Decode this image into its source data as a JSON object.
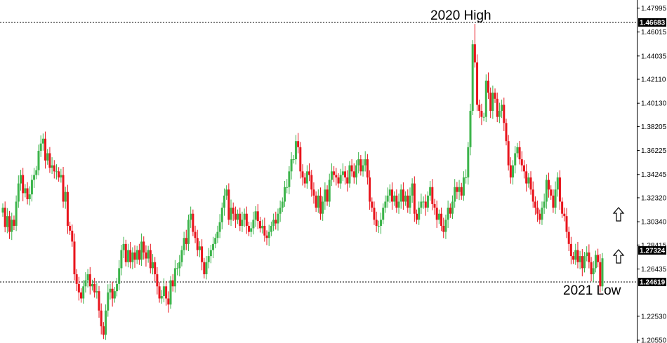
{
  "chart_data": {
    "type": "candlestick",
    "ylim": [
      1.2032,
      1.4866
    ],
    "y_ticks": [
      "1.47995",
      "1.46015",
      "1.44035",
      "1.42110",
      "1.40130",
      "1.38205",
      "1.36225",
      "1.34245",
      "1.32320",
      "1.30340",
      "1.28415",
      "1.26435",
      "1.22530",
      "1.20550"
    ],
    "price_badges": [
      {
        "label": "1.46683",
        "value": 1.46683
      },
      {
        "label": "1.27324",
        "value": 1.27324
      },
      {
        "label": "1.24619",
        "value": 1.24619
      }
    ],
    "reference_lines": [
      {
        "value": 1.46683,
        "style": "dashed"
      },
      {
        "value": 1.24619,
        "style": "dashed"
      }
    ],
    "annotations": [
      {
        "text": "2020 High",
        "value": 1.46683
      },
      {
        "text": "2021 Low",
        "value": 1.24619
      }
    ],
    "markers": [
      {
        "name": "up-arrow",
        "value": 1.302
      },
      {
        "name": "up-arrow",
        "value": 1.267
      }
    ],
    "colors": {
      "up": "#3cb44b",
      "down": "#e8141c",
      "wick": "#555555",
      "badge": "#000000"
    },
    "closes": [
      1.315,
      1.299,
      1.308,
      1.295,
      1.305,
      1.3,
      1.32,
      1.335,
      1.342,
      1.327,
      1.331,
      1.322,
      1.326,
      1.338,
      1.342,
      1.346,
      1.362,
      1.368,
      1.372,
      1.354,
      1.36,
      1.348,
      1.35,
      1.345,
      1.345,
      1.34,
      1.342,
      1.32,
      1.328,
      1.3,
      1.296,
      1.287,
      1.26,
      1.252,
      1.245,
      1.24,
      1.25,
      1.255,
      1.26,
      1.25,
      1.252,
      1.245,
      1.246,
      1.23,
      1.217,
      1.21,
      1.23,
      1.245,
      1.248,
      1.24,
      1.246,
      1.252,
      1.265,
      1.28,
      1.285,
      1.27,
      1.28,
      1.27,
      1.278,
      1.272,
      1.28,
      1.272,
      1.287,
      1.278,
      1.273,
      1.28,
      1.265,
      1.27,
      1.26,
      1.25,
      1.24,
      1.242,
      1.25,
      1.24,
      1.235,
      1.255,
      1.25,
      1.265,
      1.265,
      1.27,
      1.28,
      1.29,
      1.285,
      1.305,
      1.31,
      1.295,
      1.29,
      1.28,
      1.283,
      1.27,
      1.26,
      1.27,
      1.275,
      1.28,
      1.285,
      1.29,
      1.295,
      1.303,
      1.315,
      1.325,
      1.33,
      1.305,
      1.315,
      1.31,
      1.305,
      1.31,
      1.3,
      1.305,
      1.31,
      1.3,
      1.295,
      1.298,
      1.305,
      1.312,
      1.304,
      1.298,
      1.3,
      1.292,
      1.29,
      1.295,
      1.3,
      1.305,
      1.302,
      1.31,
      1.315,
      1.32,
      1.332,
      1.332,
      1.345,
      1.355,
      1.355,
      1.37,
      1.365,
      1.345,
      1.34,
      1.335,
      1.345,
      1.342,
      1.33,
      1.325,
      1.315,
      1.325,
      1.31,
      1.32,
      1.33,
      1.32,
      1.338,
      1.345,
      1.342,
      1.34,
      1.335,
      1.342,
      1.345,
      1.34,
      1.335,
      1.35,
      1.345,
      1.34,
      1.35,
      1.355,
      1.345,
      1.35,
      1.355,
      1.34,
      1.32,
      1.315,
      1.305,
      1.3,
      1.3,
      1.305,
      1.315,
      1.32,
      1.325,
      1.33,
      1.32,
      1.325,
      1.315,
      1.32,
      1.33,
      1.32,
      1.325,
      1.315,
      1.325,
      1.335,
      1.31,
      1.305,
      1.315,
      1.32,
      1.32,
      1.315,
      1.325,
      1.332,
      1.318,
      1.315,
      1.305,
      1.31,
      1.3,
      1.295,
      1.305,
      1.315,
      1.31,
      1.32,
      1.332,
      1.328,
      1.332,
      1.325,
      1.34,
      1.34,
      1.365,
      1.395,
      1.45,
      1.435,
      1.4,
      1.395,
      1.39,
      1.39,
      1.42,
      1.41,
      1.395,
      1.41,
      1.405,
      1.39,
      1.395,
      1.4,
      1.385,
      1.37,
      1.35,
      1.34,
      1.35,
      1.36,
      1.365,
      1.355,
      1.35,
      1.345,
      1.335,
      1.34,
      1.33,
      1.32,
      1.315,
      1.31,
      1.305,
      1.315,
      1.32,
      1.338,
      1.33,
      1.325,
      1.315,
      1.33,
      1.34,
      1.32,
      1.31,
      1.308,
      1.295,
      1.285,
      1.275,
      1.272,
      1.28,
      1.27,
      1.275,
      1.265,
      1.275,
      1.278,
      1.27,
      1.26,
      1.265,
      1.276,
      1.27,
      1.25,
      1.2732
    ]
  },
  "y_axis": {
    "tick_labels": [
      "1.47995",
      "1.46015",
      "1.44035",
      "1.42110",
      "1.40130",
      "1.38205",
      "1.36225",
      "1.34245",
      "1.32320",
      "1.30340",
      "1.28415",
      "1.26435",
      "1.22530",
      "1.20550"
    ],
    "badges": [
      "1.46683",
      "1.27324",
      "1.24619"
    ]
  },
  "annotations": {
    "high": "2020 High",
    "low": "2021 Low"
  }
}
